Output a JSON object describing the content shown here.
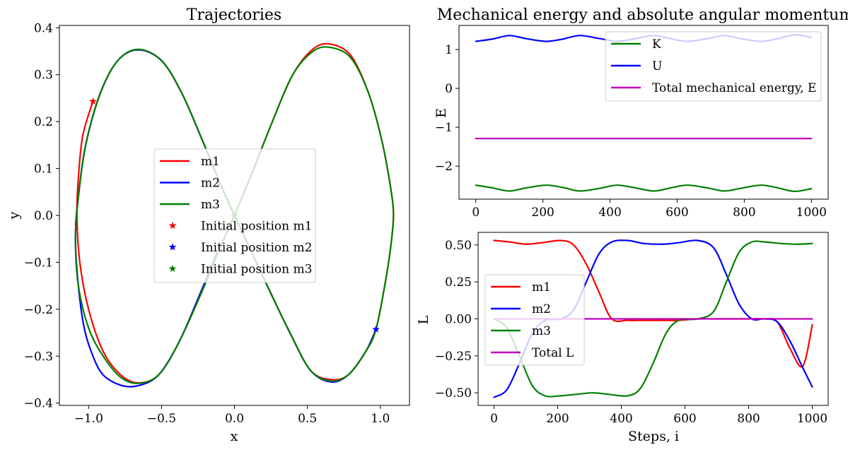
{
  "figure": {
    "panels": {
      "traj": {
        "title": "Trajectories",
        "xlabel": "x",
        "ylabel": "y",
        "xlim": [
          -1.2,
          1.2
        ],
        "ylim": [
          -0.405,
          0.405
        ],
        "xticks": [
          -1.0,
          -0.5,
          0.0,
          0.5,
          1.0
        ],
        "xtick_labels": [
          "−1.0",
          "−0.5",
          "0.0",
          "0.5",
          "1.0"
        ],
        "yticks": [
          -0.4,
          -0.3,
          -0.2,
          -0.1,
          0.0,
          0.1,
          0.2,
          0.3,
          0.4
        ],
        "ytick_labels": [
          "−0.4",
          "−0.3",
          "−0.2",
          "−0.1",
          "0.0",
          "0.1",
          "0.2",
          "0.3",
          "0.4"
        ],
        "legend": [
          {
            "label": "m1",
            "kind": "line",
            "color": "#ff0000"
          },
          {
            "label": "m2",
            "kind": "line",
            "color": "#0000ff"
          },
          {
            "label": "m3",
            "kind": "line",
            "color": "#008000"
          },
          {
            "label": "Initial position m1",
            "kind": "star",
            "color": "#ff0000"
          },
          {
            "label": "Initial position m2",
            "kind": "star",
            "color": "#0000ff"
          },
          {
            "label": "Initial position m3",
            "kind": "star",
            "color": "#008000"
          }
        ],
        "legend_location": "center"
      },
      "energy": {
        "title": "Mechanical energy and absolute angular momentum.",
        "ylabel": "E",
        "xlim": [
          -50,
          1050
        ],
        "ylim": [
          -2.85,
          1.62
        ],
        "xticks": [
          0,
          200,
          400,
          600,
          800,
          1000
        ],
        "xtick_labels": [
          "0",
          "200",
          "400",
          "600",
          "800",
          "1000"
        ],
        "yticks": [
          -2,
          -1,
          0,
          1
        ],
        "ytick_labels": [
          "−2",
          "−1",
          "0",
          "1"
        ],
        "legend": [
          {
            "label": "K",
            "color": "#008000"
          },
          {
            "label": "U",
            "color": "#0000ff"
          },
          {
            "label": "Total mechanical energy, E",
            "color": "#bf00bf"
          }
        ],
        "legend_location": "upper right"
      },
      "momentum": {
        "xlabel": "Steps, i",
        "ylabel": "L",
        "xlim": [
          -50,
          1050
        ],
        "ylim": [
          -0.585,
          0.585
        ],
        "xticks": [
          0,
          200,
          400,
          600,
          800,
          1000
        ],
        "xtick_labels": [
          "0",
          "200",
          "400",
          "600",
          "800",
          "1000"
        ],
        "yticks": [
          -0.5,
          -0.25,
          0.0,
          0.25,
          0.5
        ],
        "ytick_labels": [
          "−0.50",
          "−0.25",
          "0.00",
          "0.25",
          "0.50"
        ],
        "legend": [
          {
            "label": "m1",
            "color": "#ff0000"
          },
          {
            "label": "m2",
            "color": "#0000ff"
          },
          {
            "label": "m3",
            "color": "#008000"
          },
          {
            "label": "Total L",
            "color": "#bf00bf"
          }
        ],
        "legend_location": "center left"
      }
    }
  },
  "chart_data": [
    {
      "type": "line",
      "panel": "traj",
      "title": "Trajectories",
      "xlabel": "x",
      "ylabel": "y",
      "series": [
        {
          "name": "m1",
          "color": "#ff0000",
          "x": [
            -0.97,
            -1.04,
            -1.07,
            -1.08,
            -1.06,
            -1.0,
            -0.9,
            -0.78,
            -0.66,
            -0.52,
            -0.38,
            -0.22,
            -0.1,
            0.0,
            0.12,
            0.26,
            0.4,
            0.54,
            0.66,
            0.8,
            0.92,
            1.01,
            1.07,
            1.09,
            1.07,
            1.03,
            0.97,
            0.9,
            0.78,
            0.66,
            0.52,
            0.38,
            0.24,
            0.12,
            0.0,
            -0.1,
            -0.22,
            -0.36,
            -0.5,
            -0.66,
            -0.8,
            -0.92,
            -1.02,
            -1.07,
            -1.09
          ],
          "y": [
            0.243,
            0.17,
            0.08,
            0.0,
            -0.1,
            -0.2,
            -0.29,
            -0.34,
            -0.357,
            -0.34,
            -0.27,
            -0.16,
            -0.07,
            0.0,
            0.09,
            0.2,
            0.3,
            0.355,
            0.365,
            0.34,
            0.26,
            0.16,
            0.06,
            0.0,
            -0.07,
            -0.15,
            -0.243,
            -0.29,
            -0.34,
            -0.35,
            -0.33,
            -0.25,
            -0.16,
            -0.08,
            0.0,
            0.07,
            0.16,
            0.26,
            0.33,
            0.353,
            0.33,
            0.26,
            0.15,
            0.04,
            -0.02
          ]
        },
        {
          "name": "m2",
          "color": "#0000ff",
          "x": [
            0.97,
            0.9,
            0.78,
            0.66,
            0.52,
            0.38,
            0.24,
            0.12,
            0.0,
            -0.1,
            -0.22,
            -0.36,
            -0.5,
            -0.66,
            -0.8,
            -0.92,
            -1.02,
            -1.07,
            -1.09,
            -1.07,
            -1.03,
            -0.97,
            -0.9,
            -0.78,
            -0.66,
            -0.52,
            -0.38,
            -0.24,
            -0.12
          ],
          "y": [
            -0.243,
            -0.29,
            -0.34,
            -0.355,
            -0.33,
            -0.25,
            -0.16,
            -0.08,
            0.0,
            0.07,
            0.16,
            0.26,
            0.33,
            0.353,
            0.33,
            0.26,
            0.15,
            0.04,
            -0.05,
            -0.15,
            -0.24,
            -0.3,
            -0.34,
            -0.362,
            -0.363,
            -0.34,
            -0.27,
            -0.17,
            -0.08
          ]
        },
        {
          "name": "m3",
          "color": "#008000",
          "x": [
            0.0,
            0.12,
            0.26,
            0.4,
            0.54,
            0.66,
            0.8,
            0.92,
            1.01,
            1.07,
            1.09,
            1.07,
            1.03,
            0.97,
            0.9,
            0.78,
            0.66,
            0.52,
            0.38,
            0.24,
            0.12,
            0.0,
            -0.1,
            -0.22,
            -0.36,
            -0.5,
            -0.66,
            -0.8,
            -0.92,
            -1.02,
            -1.07,
            -1.09,
            -1.07,
            -1.0,
            -0.9,
            -0.78,
            -0.66,
            -0.52,
            -0.38,
            -0.22,
            -0.1,
            0.0
          ],
          "y": [
            0.0,
            0.09,
            0.2,
            0.3,
            0.35,
            0.358,
            0.335,
            0.26,
            0.16,
            0.06,
            0.0,
            -0.07,
            -0.15,
            -0.243,
            -0.29,
            -0.34,
            -0.353,
            -0.33,
            -0.25,
            -0.16,
            -0.08,
            0.0,
            0.07,
            0.16,
            0.26,
            0.33,
            0.354,
            0.33,
            0.26,
            0.15,
            0.04,
            -0.05,
            -0.15,
            -0.24,
            -0.3,
            -0.345,
            -0.358,
            -0.34,
            -0.27,
            -0.16,
            -0.07,
            0.0
          ]
        }
      ],
      "markers": [
        {
          "name": "Initial position m1",
          "color": "#ff0000",
          "x": -0.97,
          "y": 0.243
        },
        {
          "name": "Initial position m2",
          "color": "#0000ff",
          "x": 0.97,
          "y": -0.243
        },
        {
          "name": "Initial position m3",
          "color": "#008000",
          "x": 0.0,
          "y": 0.0
        }
      ]
    },
    {
      "type": "line",
      "panel": "energy",
      "title": "Mechanical energy and absolute angular momentum.",
      "ylabel": "E",
      "xlim": [
        -50,
        1050
      ],
      "ylim": [
        -2.85,
        1.62
      ],
      "series": [
        {
          "name": "K",
          "color": "#008000",
          "x": [
            0,
            50,
            100,
            150,
            210,
            260,
            310,
            370,
            420,
            470,
            530,
            580,
            630,
            690,
            740,
            790,
            850,
            900,
            950,
            1000
          ],
          "y": [
            -2.49,
            -2.56,
            -2.64,
            -2.56,
            -2.49,
            -2.55,
            -2.64,
            -2.57,
            -2.49,
            -2.55,
            -2.64,
            -2.56,
            -2.49,
            -2.56,
            -2.64,
            -2.57,
            -2.49,
            -2.56,
            -2.65,
            -2.58
          ]
        },
        {
          "name": "U",
          "color": "#0000ff",
          "x": [
            0,
            50,
            100,
            150,
            210,
            260,
            310,
            370,
            420,
            470,
            530,
            580,
            630,
            690,
            740,
            790,
            850,
            900,
            950,
            1000
          ],
          "y": [
            1.21,
            1.27,
            1.36,
            1.28,
            1.21,
            1.27,
            1.36,
            1.28,
            1.21,
            1.27,
            1.36,
            1.28,
            1.21,
            1.28,
            1.36,
            1.28,
            1.21,
            1.28,
            1.38,
            1.31
          ]
        },
        {
          "name": "Total mechanical energy, E",
          "color": "#bf00bf",
          "x": [
            0,
            1000
          ],
          "y": [
            -1.29,
            -1.29
          ]
        }
      ]
    },
    {
      "type": "line",
      "panel": "momentum",
      "xlabel": "Steps, i",
      "ylabel": "L",
      "xlim": [
        -50,
        1050
      ],
      "ylim": [
        -0.585,
        0.585
      ],
      "series": [
        {
          "name": "m1",
          "color": "#ff0000",
          "x": [
            0,
            50,
            100,
            150,
            210,
            250,
            290,
            330,
            370,
            420,
            470,
            530,
            580,
            640,
            690,
            740,
            800,
            850,
            890,
            930,
            970,
            1000
          ],
          "y": [
            0.53,
            0.52,
            0.505,
            0.515,
            0.53,
            0.5,
            0.37,
            0.18,
            0.0,
            -0.01,
            -0.01,
            -0.01,
            -0.01,
            0.0,
            -0.0,
            -0.0,
            0.0,
            0.0,
            -0.02,
            -0.2,
            -0.32,
            -0.04
          ]
        },
        {
          "name": "m2",
          "color": "#0000ff",
          "x": [
            0,
            40,
            80,
            120,
            160,
            210,
            250,
            290,
            330,
            370,
            420,
            470,
            530,
            580,
            640,
            690,
            730,
            770,
            810,
            850,
            890,
            930,
            970,
            1000
          ],
          "y": [
            -0.53,
            -0.48,
            -0.3,
            -0.1,
            -0.01,
            0.0,
            0.06,
            0.25,
            0.44,
            0.52,
            0.53,
            0.51,
            0.505,
            0.515,
            0.53,
            0.48,
            0.3,
            0.1,
            0.0,
            0.0,
            -0.02,
            -0.15,
            -0.33,
            -0.46
          ]
        },
        {
          "name": "m3",
          "color": "#008000",
          "x": [
            0,
            40,
            80,
            120,
            160,
            210,
            260,
            310,
            360,
            420,
            460,
            500,
            540,
            580,
            640,
            690,
            730,
            770,
            810,
            850,
            900,
            950,
            1000
          ],
          "y": [
            0.0,
            -0.06,
            -0.25,
            -0.45,
            -0.52,
            -0.52,
            -0.51,
            -0.5,
            -0.51,
            -0.52,
            -0.47,
            -0.3,
            -0.1,
            -0.01,
            0.0,
            0.05,
            0.25,
            0.45,
            0.52,
            0.52,
            0.51,
            0.505,
            0.51
          ]
        },
        {
          "name": "Total L",
          "color": "#bf00bf",
          "x": [
            0,
            1000
          ],
          "y": [
            0.0,
            0.0
          ]
        }
      ]
    }
  ]
}
